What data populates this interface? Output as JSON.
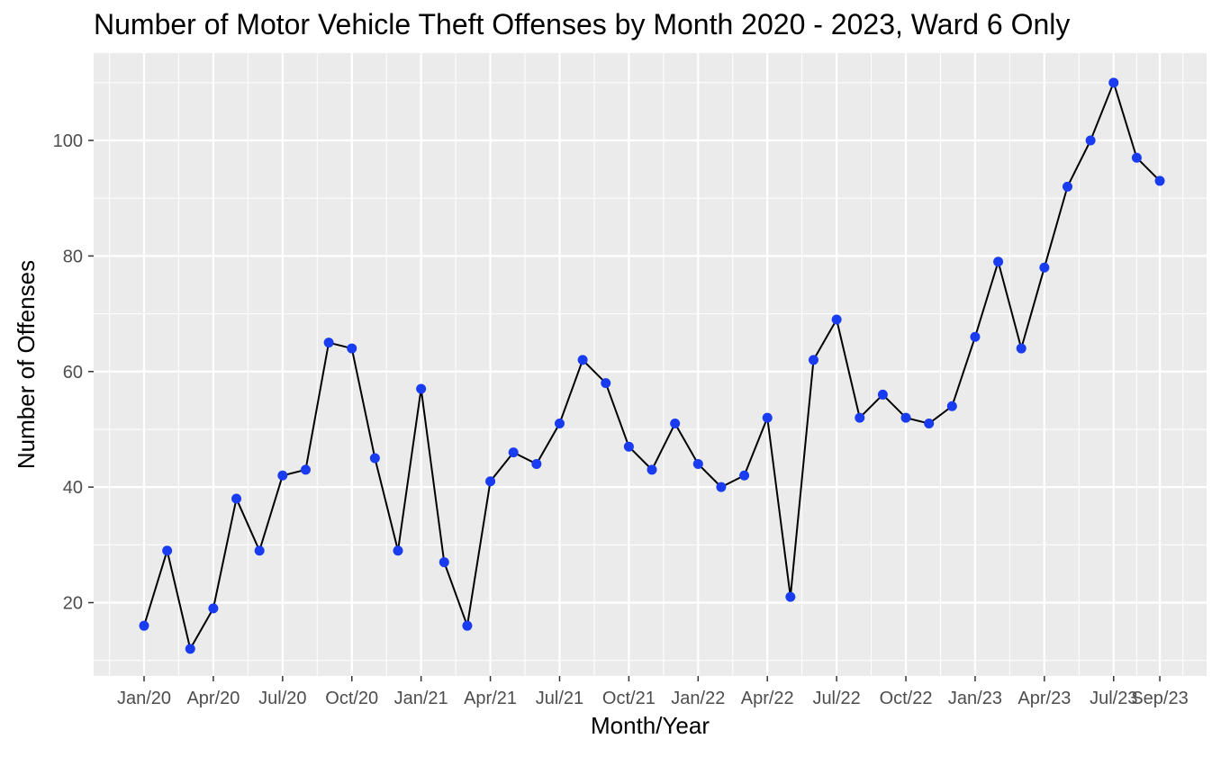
{
  "chart_data": {
    "type": "line",
    "title": "Number of Motor Vehicle Theft Offenses by Month 2020 - 2023, Ward 6 Only",
    "xlabel": "Month/Year",
    "ylabel": "Number of Offenses",
    "x": [
      "Jan/20",
      "Feb/20",
      "Mar/20",
      "Apr/20",
      "May/20",
      "Jun/20",
      "Jul/20",
      "Aug/20",
      "Sep/20",
      "Oct/20",
      "Nov/20",
      "Dec/20",
      "Jan/21",
      "Feb/21",
      "Mar/21",
      "Apr/21",
      "May/21",
      "Jun/21",
      "Jul/21",
      "Aug/21",
      "Sep/21",
      "Oct/21",
      "Nov/21",
      "Dec/21",
      "Jan/22",
      "Feb/22",
      "Mar/22",
      "Apr/22",
      "May/22",
      "Jun/22",
      "Jul/22",
      "Aug/22",
      "Sep/22",
      "Oct/22",
      "Nov/22",
      "Dec/22",
      "Jan/23",
      "Feb/23",
      "Mar/23",
      "Apr/23",
      "May/23",
      "Jun/23",
      "Jul/23",
      "Aug/23",
      "Sep/23"
    ],
    "series": [
      {
        "values": [
          16,
          29,
          12,
          19,
          38,
          29,
          42,
          43,
          65,
          64,
          45,
          29,
          57,
          27,
          16,
          41,
          46,
          44,
          51,
          62,
          58,
          47,
          43,
          51,
          44,
          40,
          42,
          52,
          21,
          62,
          69,
          52,
          56,
          52,
          51,
          54,
          66,
          79,
          64,
          78,
          92,
          100,
          110,
          97,
          93
        ]
      }
    ],
    "x_tick_labels": [
      "Jan/20",
      "Apr/20",
      "Jul/20",
      "Oct/20",
      "Jan/21",
      "Apr/21",
      "Jul/21",
      "Oct/21",
      "Jan/22",
      "Apr/22",
      "Jul/22",
      "Oct/22",
      "Jan/23",
      "Apr/23",
      "Jul/23",
      "Sep/23"
    ],
    "y_ticks": [
      20,
      40,
      60,
      80,
      100
    ],
    "ylim": [
      7,
      115
    ],
    "grid": true,
    "legend": "none",
    "colors": {
      "panel_background": "#ebebeb",
      "grid_major": "#ffffff",
      "line": "#000000",
      "point": "#1a3cf0",
      "tick_text": "#4d4d4d"
    }
  }
}
